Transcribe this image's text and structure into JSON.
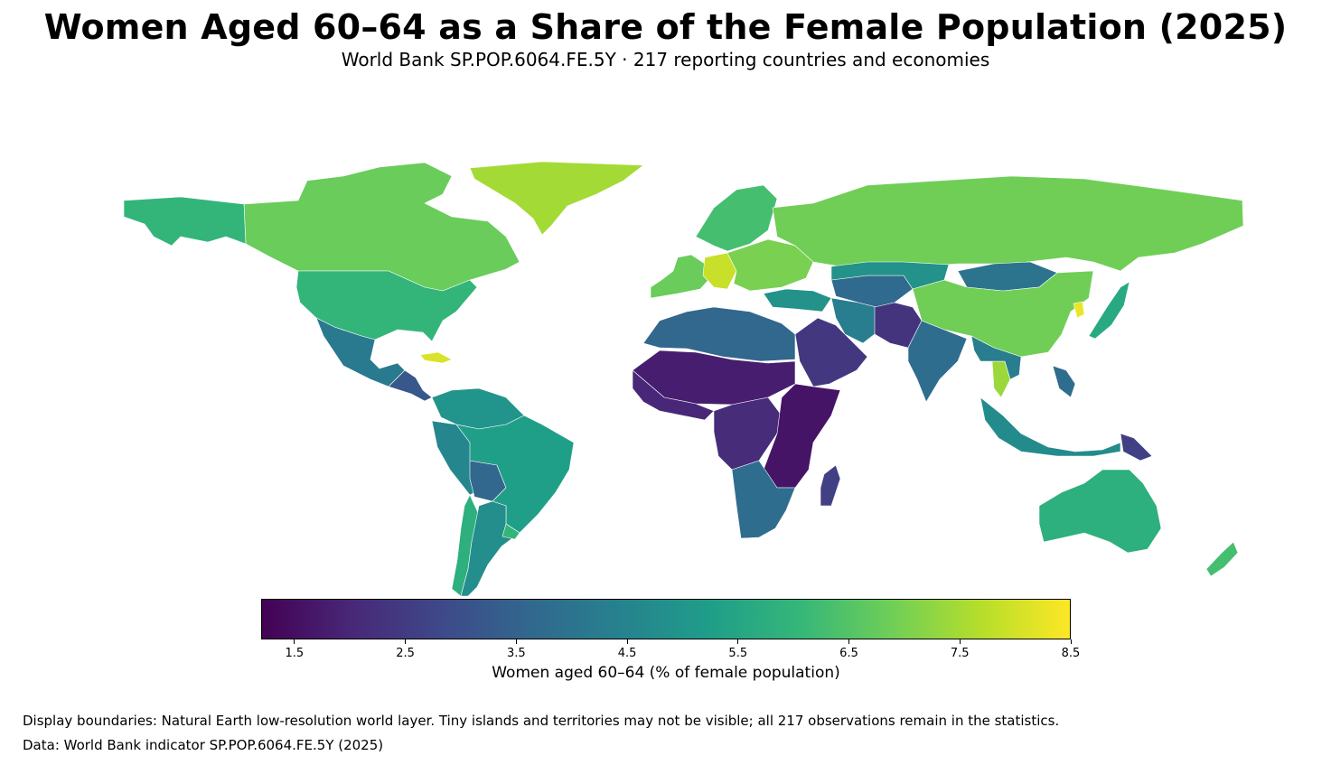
{
  "header": {
    "title": "Women Aged 60–64 as a Share of the Female Population (2025)",
    "subtitle": "World Bank SP.POP.6064.FE.5Y · 217 reporting countries and economies"
  },
  "colorbar": {
    "label": "Women aged 60–64 (% of female population)",
    "range": [
      1.2,
      8.5
    ],
    "ticks": [
      "1.5",
      "2.5",
      "3.5",
      "4.5",
      "5.5",
      "6.5",
      "7.5",
      "8.5"
    ],
    "colormap": [
      "#440154",
      "#482878",
      "#3e4989",
      "#31688e",
      "#26828e",
      "#1f9e89",
      "#35b779",
      "#6ece58",
      "#b5de2b",
      "#fde725"
    ]
  },
  "notes": {
    "boundaries": "Display boundaries: Natural Earth low-resolution world layer. Tiny islands and territories may not be visible; all 217 observations remain in the statistics.",
    "source": "Data: World Bank indicator SP.POP.6064.FE.5Y (2025)"
  },
  "regions": [
    {
      "name": "Greenland",
      "value": 7.5
    },
    {
      "name": "Canada",
      "value": 6.8
    },
    {
      "name": "Alaska",
      "value": 6.0
    },
    {
      "name": "United States",
      "value": 6.0
    },
    {
      "name": "Mexico",
      "value": 4.2
    },
    {
      "name": "Central America",
      "value": 3.2
    },
    {
      "name": "Cuba",
      "value": 8.1
    },
    {
      "name": "Colombia / Venezuela",
      "value": 5.0
    },
    {
      "name": "Peru / Ecuador",
      "value": 4.6
    },
    {
      "name": "Bolivia",
      "value": 3.6
    },
    {
      "name": "Brazil",
      "value": 5.3
    },
    {
      "name": "Chile",
      "value": 5.8
    },
    {
      "name": "Argentina",
      "value": 4.8
    },
    {
      "name": "Uruguay",
      "value": 6.0
    },
    {
      "name": "Western Europe",
      "value": 6.8
    },
    {
      "name": "Germany",
      "value": 7.9
    },
    {
      "name": "Eastern Europe",
      "value": 7.0
    },
    {
      "name": "Scandinavia",
      "value": 6.3
    },
    {
      "name": "Russia",
      "value": 6.9
    },
    {
      "name": "Turkey",
      "value": 4.9
    },
    {
      "name": "North Africa",
      "value": 3.6
    },
    {
      "name": "Sahel",
      "value": 1.8
    },
    {
      "name": "West Africa",
      "value": 2.0
    },
    {
      "name": "Central Africa",
      "value": 2.1
    },
    {
      "name": "East Africa",
      "value": 1.6
    },
    {
      "name": "Southern Africa",
      "value": 3.8
    },
    {
      "name": "Madagascar",
      "value": 2.6
    },
    {
      "name": "Arabian Peninsula",
      "value": 2.4
    },
    {
      "name": "Iran",
      "value": 4.3
    },
    {
      "name": "Central Asia",
      "value": 3.7
    },
    {
      "name": "Afghanistan / Pakistan",
      "value": 2.3
    },
    {
      "name": "India",
      "value": 3.8
    },
    {
      "name": "Kazakhstan",
      "value": 4.9
    },
    {
      "name": "Mongolia",
      "value": 4.0
    },
    {
      "name": "China",
      "value": 6.9
    },
    {
      "name": "Korea",
      "value": 8.3
    },
    {
      "name": "Japan",
      "value": 5.6
    },
    {
      "name": "Thailand",
      "value": 7.4
    },
    {
      "name": "Mainland Southeast Asia",
      "value": 4.3
    },
    {
      "name": "Indonesia",
      "value": 4.7
    },
    {
      "name": "Philippines",
      "value": 3.8
    },
    {
      "name": "Papua New Guinea",
      "value": 2.6
    },
    {
      "name": "Australia",
      "value": 5.8
    },
    {
      "name": "New Zealand",
      "value": 6.3
    }
  ]
}
